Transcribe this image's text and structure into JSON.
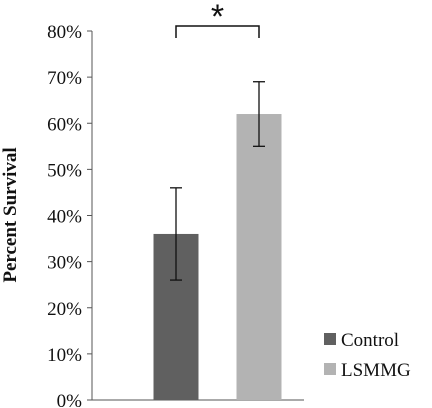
{
  "chart_data": {
    "type": "bar",
    "title": "",
    "xlabel": "",
    "ylabel": "Percent Survival",
    "ylim": [
      0,
      80
    ],
    "ytick_step": 10,
    "ytick_labels": [
      "0%",
      "10%",
      "20%",
      "30%",
      "40%",
      "50%",
      "60%",
      "70%",
      "80%"
    ],
    "grid": false,
    "legend_position": "bottom-right",
    "series": [
      {
        "name": "Control",
        "value": 36,
        "error_low": 26,
        "error_high": 46,
        "color": "#606060"
      },
      {
        "name": "LSMMG",
        "value": 62,
        "error_low": 55,
        "error_high": 69,
        "color": "#b3b3b3"
      }
    ],
    "significance": {
      "label": "*",
      "between": [
        "Control",
        "LSMMG"
      ]
    }
  }
}
